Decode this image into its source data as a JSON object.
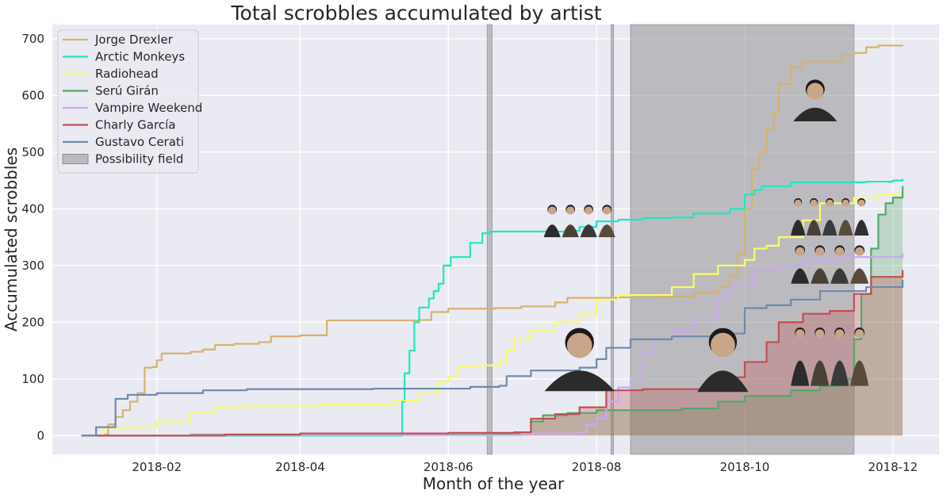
{
  "chart_data": {
    "type": "line",
    "title": "Total scrobbles accumulated by artist",
    "xlabel": "Month of the year",
    "ylabel": "Accumulated scrobbles",
    "x_ticks": [
      "2018-02",
      "2018-04",
      "2018-06",
      "2018-08",
      "2018-10",
      "2018-12"
    ],
    "y_ticks": [
      0,
      100,
      200,
      300,
      400,
      500,
      600,
      700
    ],
    "xlim": [
      "2017-12-20",
      "2018-12-20"
    ],
    "ylim": [
      -33,
      725
    ],
    "grid": true,
    "legend_position": "top-left",
    "background": "#eaeaf2",
    "series": [
      {
        "name": "Jorge Drexler",
        "color": "#d6b26e",
        "points": [
          [
            "2018-01-01",
            0
          ],
          [
            "2018-01-10",
            2
          ],
          [
            "2018-01-12",
            20
          ],
          [
            "2018-01-15",
            33
          ],
          [
            "2018-01-18",
            45
          ],
          [
            "2018-01-21",
            60
          ],
          [
            "2018-01-24",
            75
          ],
          [
            "2018-01-27",
            120
          ],
          [
            "2018-01-30",
            121
          ],
          [
            "2018-02-01",
            133
          ],
          [
            "2018-02-03",
            145
          ],
          [
            "2018-02-15",
            148
          ],
          [
            "2018-02-20",
            152
          ],
          [
            "2018-02-25",
            160
          ],
          [
            "2018-03-05",
            162
          ],
          [
            "2018-03-15",
            165
          ],
          [
            "2018-03-20",
            175
          ],
          [
            "2018-04-01",
            177
          ],
          [
            "2018-04-10",
            177
          ],
          [
            "2018-04-12",
            203
          ],
          [
            "2018-05-20",
            204
          ],
          [
            "2018-05-25",
            218
          ],
          [
            "2018-06-01",
            224
          ],
          [
            "2018-06-20",
            225
          ],
          [
            "2018-07-01",
            228
          ],
          [
            "2018-07-15",
            235
          ],
          [
            "2018-07-20",
            243
          ],
          [
            "2018-08-10",
            244
          ],
          [
            "2018-08-25",
            245
          ],
          [
            "2018-09-10",
            252
          ],
          [
            "2018-09-20",
            262
          ],
          [
            "2018-09-25",
            283
          ],
          [
            "2018-09-28",
            320
          ],
          [
            "2018-10-01",
            400
          ],
          [
            "2018-10-04",
            470
          ],
          [
            "2018-10-07",
            500
          ],
          [
            "2018-10-10",
            540
          ],
          [
            "2018-10-13",
            570
          ],
          [
            "2018-10-15",
            620
          ],
          [
            "2018-10-20",
            650
          ],
          [
            "2018-10-25",
            660
          ],
          [
            "2018-11-10",
            670
          ],
          [
            "2018-11-15",
            675
          ],
          [
            "2018-11-20",
            685
          ],
          [
            "2018-11-25",
            688
          ],
          [
            "2018-12-05",
            689
          ]
        ]
      },
      {
        "name": "Arctic Monkeys",
        "color": "#1ee8c0",
        "points": [
          [
            "2018-01-01",
            0
          ],
          [
            "2018-05-12",
            0
          ],
          [
            "2018-05-13",
            60
          ],
          [
            "2018-05-14",
            110
          ],
          [
            "2018-05-16",
            150
          ],
          [
            "2018-05-18",
            200
          ],
          [
            "2018-05-20",
            226
          ],
          [
            "2018-05-24",
            242
          ],
          [
            "2018-05-26",
            255
          ],
          [
            "2018-05-28",
            268
          ],
          [
            "2018-05-30",
            300
          ],
          [
            "2018-06-02",
            315
          ],
          [
            "2018-06-10",
            340
          ],
          [
            "2018-06-15",
            357
          ],
          [
            "2018-06-18",
            360
          ],
          [
            "2018-07-20",
            361
          ],
          [
            "2018-07-25",
            368
          ],
          [
            "2018-08-01",
            378
          ],
          [
            "2018-08-10",
            381
          ],
          [
            "2018-08-20",
            384
          ],
          [
            "2018-09-01",
            385
          ],
          [
            "2018-09-10",
            392
          ],
          [
            "2018-09-25",
            400
          ],
          [
            "2018-10-01",
            425
          ],
          [
            "2018-10-05",
            433
          ],
          [
            "2018-10-08",
            440
          ],
          [
            "2018-10-20",
            447
          ],
          [
            "2018-11-20",
            448
          ],
          [
            "2018-12-01",
            450
          ],
          [
            "2018-12-05",
            453
          ]
        ]
      },
      {
        "name": "Radiohead",
        "color": "#fbfb6a",
        "points": [
          [
            "2018-01-01",
            0
          ],
          [
            "2018-01-10",
            14
          ],
          [
            "2018-01-25",
            15
          ],
          [
            "2018-02-01",
            25
          ],
          [
            "2018-02-15",
            40
          ],
          [
            "2018-02-25",
            50
          ],
          [
            "2018-03-10",
            53
          ],
          [
            "2018-04-10",
            55
          ],
          [
            "2018-05-10",
            62
          ],
          [
            "2018-05-20",
            75
          ],
          [
            "2018-05-28",
            95
          ],
          [
            "2018-06-01",
            105
          ],
          [
            "2018-06-05",
            122
          ],
          [
            "2018-06-12",
            124
          ],
          [
            "2018-06-22",
            130
          ],
          [
            "2018-06-25",
            150
          ],
          [
            "2018-06-28",
            170
          ],
          [
            "2018-07-05",
            186
          ],
          [
            "2018-07-15",
            201
          ],
          [
            "2018-07-25",
            215
          ],
          [
            "2018-08-01",
            240
          ],
          [
            "2018-08-10",
            248
          ],
          [
            "2018-09-01",
            262
          ],
          [
            "2018-09-10",
            285
          ],
          [
            "2018-09-20",
            300
          ],
          [
            "2018-10-01",
            310
          ],
          [
            "2018-10-05",
            330
          ],
          [
            "2018-10-10",
            335
          ],
          [
            "2018-10-15",
            350
          ],
          [
            "2018-10-25",
            380
          ],
          [
            "2018-11-01",
            410
          ],
          [
            "2018-11-15",
            420
          ],
          [
            "2018-11-25",
            425
          ],
          [
            "2018-12-05",
            428
          ]
        ]
      },
      {
        "name": "Serú Girán",
        "color": "#55a868",
        "points": [
          [
            "2018-01-01",
            0
          ],
          [
            "2018-02-15",
            2
          ],
          [
            "2018-06-01",
            2
          ],
          [
            "2018-06-20",
            3
          ],
          [
            "2018-07-01",
            5
          ],
          [
            "2018-07-05",
            25
          ],
          [
            "2018-07-10",
            36
          ],
          [
            "2018-07-20",
            40
          ],
          [
            "2018-08-01",
            45
          ],
          [
            "2018-09-05",
            48
          ],
          [
            "2018-09-20",
            60
          ],
          [
            "2018-10-01",
            70
          ],
          [
            "2018-10-20",
            80
          ],
          [
            "2018-11-01",
            88
          ],
          [
            "2018-11-10",
            100
          ],
          [
            "2018-11-15",
            170
          ],
          [
            "2018-11-18",
            250
          ],
          [
            "2018-11-22",
            330
          ],
          [
            "2018-11-25",
            390
          ],
          [
            "2018-11-28",
            410
          ],
          [
            "2018-12-01",
            420
          ],
          [
            "2018-12-05",
            440
          ]
        ]
      },
      {
        "name": "Vampire Weekend",
        "color": "#c9a8f0",
        "points": [
          [
            "2018-01-01",
            0
          ],
          [
            "2018-02-15",
            1
          ],
          [
            "2018-06-01",
            1
          ],
          [
            "2018-07-01",
            4
          ],
          [
            "2018-07-25",
            6
          ],
          [
            "2018-07-28",
            20
          ],
          [
            "2018-08-01",
            30
          ],
          [
            "2018-08-05",
            60
          ],
          [
            "2018-08-10",
            85
          ],
          [
            "2018-08-15",
            100
          ],
          [
            "2018-08-20",
            145
          ],
          [
            "2018-08-25",
            170
          ],
          [
            "2018-09-01",
            185
          ],
          [
            "2018-09-10",
            205
          ],
          [
            "2018-09-20",
            245
          ],
          [
            "2018-09-25",
            265
          ],
          [
            "2018-10-05",
            290
          ],
          [
            "2018-10-15",
            300
          ],
          [
            "2018-10-25",
            310
          ],
          [
            "2018-11-10",
            315
          ],
          [
            "2018-12-05",
            322
          ]
        ]
      },
      {
        "name": "Charly García",
        "color": "#c44e52",
        "points": [
          [
            "2018-01-01",
            0
          ],
          [
            "2018-03-01",
            2
          ],
          [
            "2018-04-01",
            4
          ],
          [
            "2018-06-01",
            5
          ],
          [
            "2018-06-28",
            6
          ],
          [
            "2018-07-05",
            30
          ],
          [
            "2018-07-15",
            38
          ],
          [
            "2018-07-25",
            50
          ],
          [
            "2018-08-05",
            80
          ],
          [
            "2018-08-20",
            82
          ],
          [
            "2018-09-20",
            83
          ],
          [
            "2018-09-25",
            103
          ],
          [
            "2018-10-01",
            130
          ],
          [
            "2018-10-10",
            165
          ],
          [
            "2018-10-15",
            200
          ],
          [
            "2018-10-25",
            215
          ],
          [
            "2018-11-05",
            220
          ],
          [
            "2018-11-15",
            250
          ],
          [
            "2018-11-22",
            280
          ],
          [
            "2018-12-05",
            292
          ]
        ]
      },
      {
        "name": "Gustavo Cerati",
        "color": "#6d8aad",
        "points": [
          [
            "2018-01-01",
            0
          ],
          [
            "2018-01-07",
            15
          ],
          [
            "2018-01-15",
            65
          ],
          [
            "2018-01-20",
            72
          ],
          [
            "2018-02-01",
            75
          ],
          [
            "2018-02-20",
            80
          ],
          [
            "2018-03-10",
            82
          ],
          [
            "2018-05-01",
            83
          ],
          [
            "2018-06-10",
            86
          ],
          [
            "2018-06-22",
            88
          ],
          [
            "2018-06-25",
            105
          ],
          [
            "2018-07-05",
            115
          ],
          [
            "2018-07-25",
            120
          ],
          [
            "2018-08-01",
            135
          ],
          [
            "2018-08-05",
            155
          ],
          [
            "2018-08-15",
            170
          ],
          [
            "2018-09-01",
            175
          ],
          [
            "2018-09-20",
            180
          ],
          [
            "2018-10-01",
            225
          ],
          [
            "2018-10-10",
            230
          ],
          [
            "2018-10-20",
            240
          ],
          [
            "2018-11-01",
            255
          ],
          [
            "2018-11-20",
            262
          ],
          [
            "2018-12-05",
            275
          ]
        ]
      }
    ],
    "fills": [
      {
        "series": "Serú Girán",
        "color": "#55a868",
        "opacity": 0.3
      },
      {
        "series": "Charly García",
        "color": "#c44e52",
        "opacity": 0.3
      }
    ],
    "possibility_field": {
      "label": "Possibility field",
      "color": "#8c8c8c",
      "regions": [
        [
          "2018-08-15",
          "2018-11-15"
        ],
        [
          "2018-06-17",
          "2018-06-19"
        ],
        [
          "2018-08-07",
          "2018-08-08"
        ]
      ]
    },
    "photos": [
      {
        "artist": "Jorge Drexler",
        "icon": "portrait-jorge-drexler",
        "date": "2018-10-30",
        "value": 595
      },
      {
        "artist": "Arctic Monkeys",
        "icon": "portrait-arctic-monkeys",
        "date": "2018-07-25",
        "value": 385
      },
      {
        "artist": "Radiohead",
        "icon": "portrait-radiohead",
        "date": "2018-11-05",
        "value": 395
      },
      {
        "artist": "Vampire Weekend",
        "icon": "portrait-vampire-weekend",
        "date": "2018-11-05",
        "value": 310
      },
      {
        "artist": "Gustavo Cerati",
        "icon": "portrait-gustavo-cerati",
        "date": "2018-07-25",
        "value": 140
      },
      {
        "artist": "Charly García",
        "icon": "portrait-charly-garcia",
        "date": "2018-09-22",
        "value": 140
      },
      {
        "artist": "Serú Girán",
        "icon": "portrait-seru-giran",
        "date": "2018-11-05",
        "value": 155
      }
    ]
  }
}
